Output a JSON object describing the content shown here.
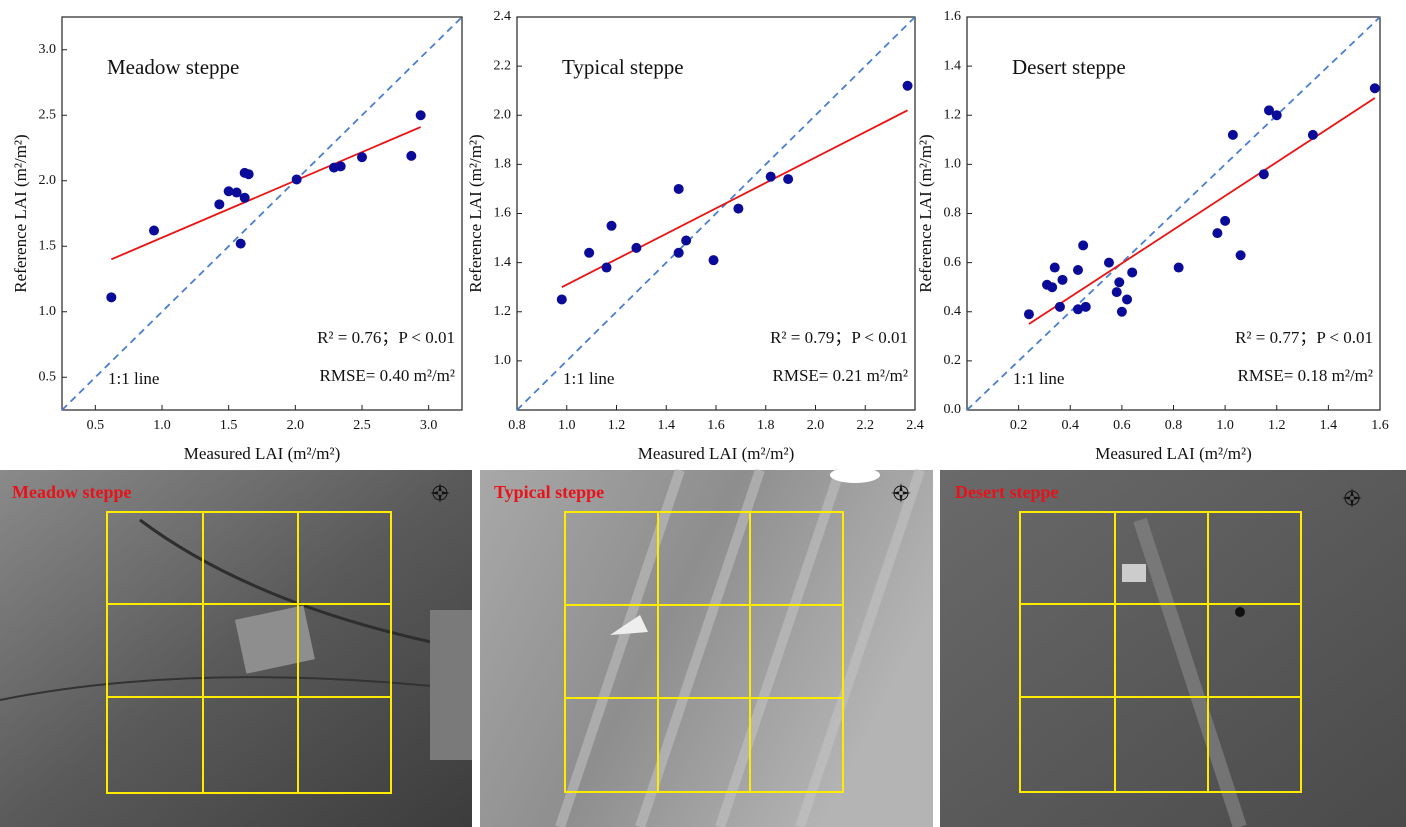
{
  "chart_data": [
    {
      "type": "scatter",
      "title": "Meadow steppe",
      "xlabel": "Measured LAI (m²/m²)",
      "ylabel": "Reference LAI (m²/m²)",
      "annotations": [
        "1:1 line",
        "R² = 0.76；P < 0.01",
        "RMSE= 0.40 m²/m²"
      ],
      "color": "#0b0b9a",
      "x": [
        0.62,
        0.94,
        1.43,
        1.5,
        1.56,
        1.59,
        1.62,
        1.62,
        1.65,
        2.01,
        2.29,
        2.34,
        2.5,
        2.87,
        2.94
      ],
      "values": [
        1.11,
        1.62,
        1.82,
        1.92,
        1.91,
        1.52,
        1.87,
        2.06,
        2.05,
        2.01,
        2.1,
        2.11,
        2.18,
        2.19,
        2.5
      ],
      "fit_line": {
        "x": [
          0.62,
          2.94
        ],
        "y": [
          1.4,
          2.41
        ],
        "color": "#ee1111"
      },
      "reference_color": "#4a7fd0",
      "xlim": [
        0.25,
        3.25
      ],
      "ylim": [
        0.25,
        3.25
      ],
      "xticks": [
        0.5,
        {
          "value": 1,
          "label": "1.0"
        },
        1.5,
        {
          "value": 2,
          "label": "2.0"
        },
        2.5,
        {
          "value": 3,
          "label": "3.0"
        }
      ],
      "yticks": [
        0.5,
        {
          "value": 1,
          "label": "1.0"
        },
        1.5,
        {
          "value": 2,
          "label": "2.0"
        },
        2.5,
        {
          "value": 3,
          "label": "3.0"
        }
      ]
    },
    {
      "type": "scatter",
      "title": "Typical steppe",
      "xlabel": "Measured LAI (m²/m²)",
      "ylabel": "Reference LAI (m²/m²)",
      "annotations": [
        "1:1 line",
        "R² = 0.79；P < 0.01",
        "RMSE= 0.21 m²/m²"
      ],
      "color": "#0b0b9a",
      "x": [
        0.98,
        1.09,
        1.16,
        1.18,
        1.28,
        1.45,
        1.45,
        1.48,
        1.59,
        1.69,
        1.82,
        1.89,
        2.37
      ],
      "values": [
        1.25,
        1.44,
        1.38,
        1.55,
        1.46,
        1.7,
        1.44,
        1.49,
        1.41,
        1.62,
        1.75,
        1.74,
        2.12
      ],
      "fit_line": {
        "x": [
          0.98,
          2.37
        ],
        "y": [
          1.3,
          2.02
        ],
        "color": "#ee1111"
      },
      "reference_color": "#4a7fd0",
      "xlim": [
        0.8,
        2.4
      ],
      "ylim": [
        0.8,
        2.4
      ],
      "xticks": [
        0.8,
        {
          "value": 1,
          "label": "1.0"
        },
        1.2,
        1.4,
        1.6,
        1.8,
        {
          "value": 2,
          "label": "2.0"
        },
        2.2,
        2.4
      ],
      "yticks": [
        {
          "value": 1,
          "label": "1.0"
        },
        1.2,
        1.4,
        1.6,
        1.8,
        {
          "value": 2,
          "label": "2.0"
        },
        2.2,
        2.4
      ]
    },
    {
      "type": "scatter",
      "title": "Desert steppe",
      "xlabel": "Measured LAI (m²/m²)",
      "ylabel": "Reference LAI (m²/m²)",
      "annotations": [
        "1:1 line",
        "R² = 0.77；P < 0.01",
        "RMSE= 0.18 m²/m²"
      ],
      "color": "#0b0b9a",
      "x": [
        0.24,
        0.31,
        0.33,
        0.34,
        0.36,
        0.37,
        0.43,
        0.43,
        0.45,
        0.46,
        0.55,
        0.58,
        0.59,
        0.6,
        0.62,
        0.64,
        0.82,
        0.97,
        1.0,
        1.03,
        1.06,
        1.15,
        1.17,
        1.2,
        1.34,
        1.58
      ],
      "values": [
        0.39,
        0.51,
        0.5,
        0.58,
        0.42,
        0.53,
        0.57,
        0.41,
        0.67,
        0.42,
        0.6,
        0.48,
        0.52,
        0.4,
        0.45,
        0.56,
        0.58,
        0.72,
        0.77,
        1.12,
        0.63,
        0.96,
        1.22,
        1.2,
        1.12,
        1.31
      ],
      "fit_line": {
        "x": [
          0.24,
          1.58
        ],
        "y": [
          0.35,
          1.27
        ],
        "color": "#ee1111"
      },
      "reference_color": "#4a7fd0",
      "xlim": [
        0,
        1.6
      ],
      "ylim": [
        0,
        1.6
      ],
      "xticks": [
        0.2,
        0.4,
        0.6,
        0.8,
        {
          "value": 1,
          "label": "1.0"
        },
        1.2,
        1.4,
        1.6
      ],
      "yticks": [
        {
          "value": 0,
          "label": "0.0"
        },
        0.2,
        0.4,
        0.6,
        0.8,
        {
          "value": 1,
          "label": "1.0"
        },
        1.2,
        1.4,
        1.6
      ]
    }
  ],
  "image_panels": [
    {
      "label": "Meadow steppe"
    },
    {
      "label": "Typical steppe"
    },
    {
      "label": "Desert steppe"
    }
  ]
}
